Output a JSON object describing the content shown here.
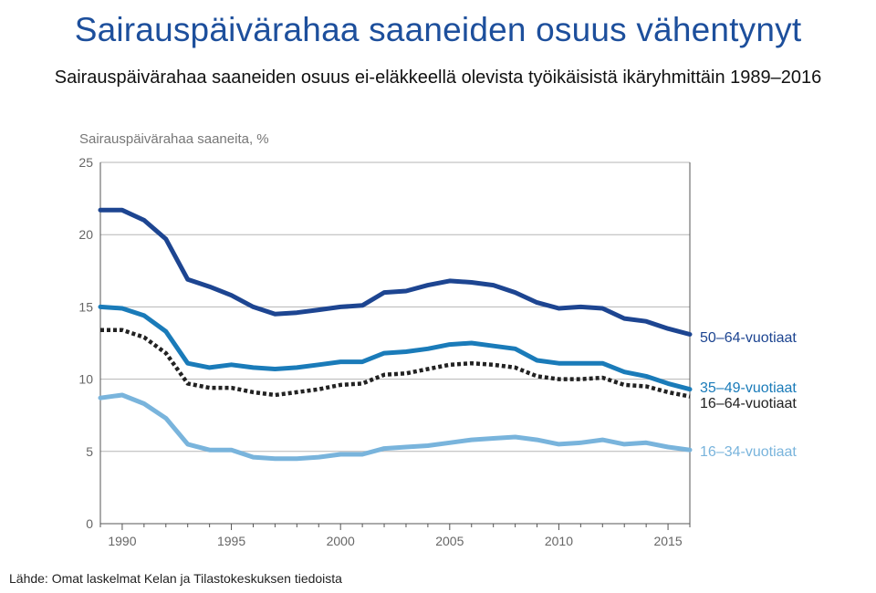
{
  "title": "Sairauspäivärahaa saaneiden osuus vähentynyt",
  "subtitle": "Sairauspäivärahaa saaneiden osuus ei-eläkkeellä olevista työikäisistä ikäryhmittäin 1989–2016",
  "source": "Lähde: Omat laskelmat Kelan ja Tilastokeskuksen tiedoista",
  "chart_data": {
    "type": "line",
    "ylabel": "Sairauspäivärahaa saaneita, %",
    "xlabel": "",
    "ylim": [
      0,
      25
    ],
    "xlim": [
      1989,
      2016
    ],
    "yticks": [
      0,
      5,
      10,
      15,
      20,
      25
    ],
    "xticks": [
      1990,
      1995,
      2000,
      2005,
      2010,
      2015
    ],
    "grid": "horizontal",
    "legend": "direct labels at line ends (right)",
    "x": [
      1989,
      1990,
      1991,
      1992,
      1993,
      1994,
      1995,
      1996,
      1997,
      1998,
      1999,
      2000,
      2001,
      2002,
      2003,
      2004,
      2005,
      2006,
      2007,
      2008,
      2009,
      2010,
      2011,
      2012,
      2013,
      2014,
      2015,
      2016
    ],
    "series": [
      {
        "name": "50–64-vuotiaat",
        "color": "#1d4591",
        "dashed": false,
        "values": [
          21.7,
          21.7,
          21.0,
          19.7,
          16.9,
          16.4,
          15.8,
          15.0,
          14.5,
          14.6,
          14.8,
          15.0,
          15.1,
          16.0,
          16.1,
          16.5,
          16.8,
          16.7,
          16.5,
          16.0,
          15.3,
          14.9,
          15.0,
          14.9,
          14.2,
          14.0,
          13.5,
          13.1
        ]
      },
      {
        "name": "35–49-vuotiaat",
        "color": "#1a7bb9",
        "dashed": false,
        "values": [
          15.0,
          14.9,
          14.4,
          13.3,
          11.1,
          10.8,
          11.0,
          10.8,
          10.7,
          10.8,
          11.0,
          11.2,
          11.2,
          11.8,
          11.9,
          12.1,
          12.4,
          12.5,
          12.3,
          12.1,
          11.3,
          11.1,
          11.1,
          11.1,
          10.5,
          10.2,
          9.7,
          9.3
        ]
      },
      {
        "name": "16–64-vuotiaat",
        "color": "#222222",
        "dashed": true,
        "values": [
          13.4,
          13.4,
          12.9,
          11.8,
          9.7,
          9.4,
          9.4,
          9.1,
          8.9,
          9.1,
          9.3,
          9.6,
          9.7,
          10.3,
          10.4,
          10.7,
          11.0,
          11.1,
          11.0,
          10.8,
          10.2,
          10.0,
          10.0,
          10.1,
          9.6,
          9.5,
          9.1,
          8.8
        ]
      },
      {
        "name": "16–34-vuotiaat",
        "color": "#79b4dc",
        "dashed": false,
        "values": [
          8.7,
          8.9,
          8.3,
          7.3,
          5.5,
          5.1,
          5.1,
          4.6,
          4.5,
          4.5,
          4.6,
          4.8,
          4.8,
          5.2,
          5.3,
          5.4,
          5.6,
          5.8,
          5.9,
          6.0,
          5.8,
          5.5,
          5.6,
          5.8,
          5.5,
          5.6,
          5.3,
          5.1
        ]
      }
    ]
  }
}
